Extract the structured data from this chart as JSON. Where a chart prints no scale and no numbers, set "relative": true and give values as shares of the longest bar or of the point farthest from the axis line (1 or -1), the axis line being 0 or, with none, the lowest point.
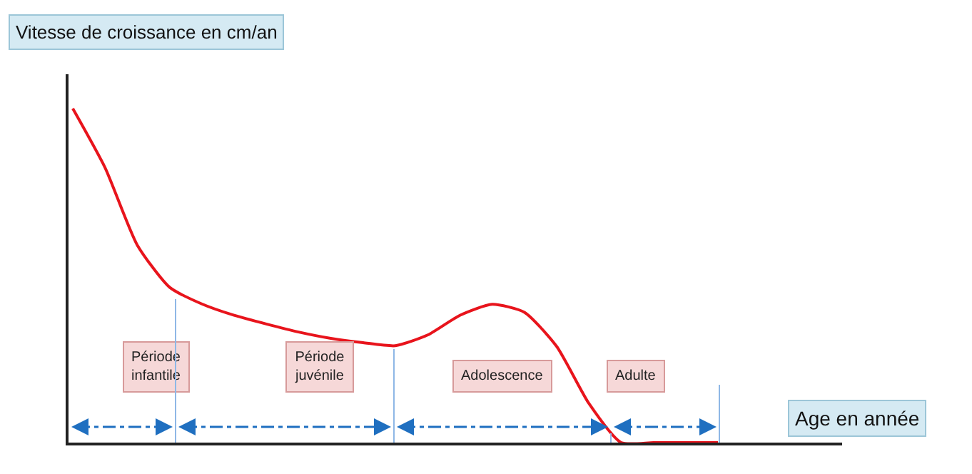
{
  "chart_data": {
    "type": "line",
    "relative": true,
    "xlabel": "Age en année",
    "ylabel": "Vitesse de croissance en cm/an",
    "categories": [
      null,
      null,
      null,
      null,
      null,
      null,
      null,
      null,
      null,
      null,
      null,
      null,
      null,
      null,
      null,
      null,
      null,
      null,
      null,
      null,
      null
    ],
    "series": [
      {
        "color": "#e8141c",
        "values": [
          1,
          0.823,
          0.591,
          0.465,
          0.415,
          0.381,
          0.355,
          0.331,
          0.312,
          0.299,
          0.29,
          0.322,
          0.381,
          0.414,
          0.39,
          0.288,
          0.117,
          0,
          0,
          0,
          0
        ]
      }
    ],
    "annotations": [
      "Période\ninfantile",
      "Période\njuvénile",
      "Adolescence",
      "Adulte"
    ],
    "marker": "none",
    "line_style": "solid"
  }
}
